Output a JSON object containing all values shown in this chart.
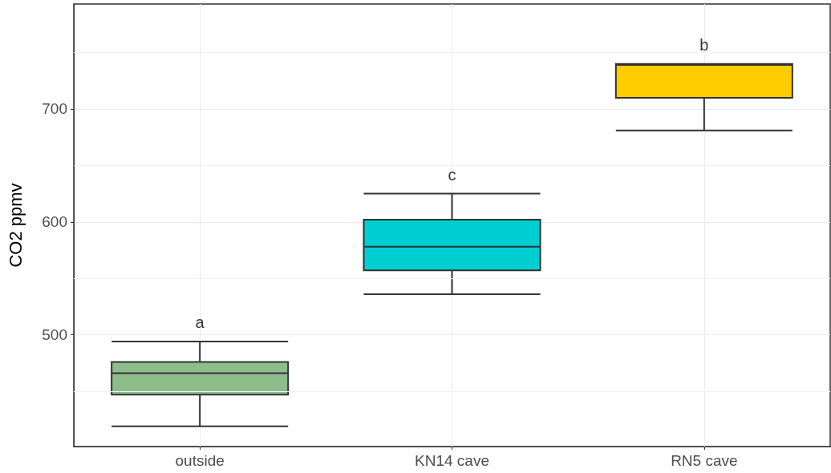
{
  "chart_data": {
    "type": "box",
    "ylabel": "CO2 ppmv",
    "categories": [
      "outside",
      "KN14 cave",
      "RN5 cave"
    ],
    "boxes": [
      {
        "low": 419,
        "q1": 447,
        "median": 466,
        "q3": 476,
        "high": 494
      },
      {
        "low": 536,
        "q1": 557,
        "median": 578,
        "q3": 602,
        "high": 625
      },
      {
        "low": 681,
        "q1": 710,
        "median": 739,
        "q3": 740,
        "high": 740
      }
    ],
    "colors": [
      "#8fbc8b",
      "#00ced1",
      "#ffcc00"
    ],
    "ylim": [
      401,
      793
    ],
    "yticks": [
      {
        "value": 450,
        "label": null
      },
      500,
      {
        "value": 550,
        "label": null
      },
      600,
      {
        "value": 650,
        "label": null
      },
      700,
      {
        "value": 750,
        "label": null
      }
    ],
    "grid": true,
    "annotations": [
      "a",
      "c",
      "b"
    ]
  }
}
